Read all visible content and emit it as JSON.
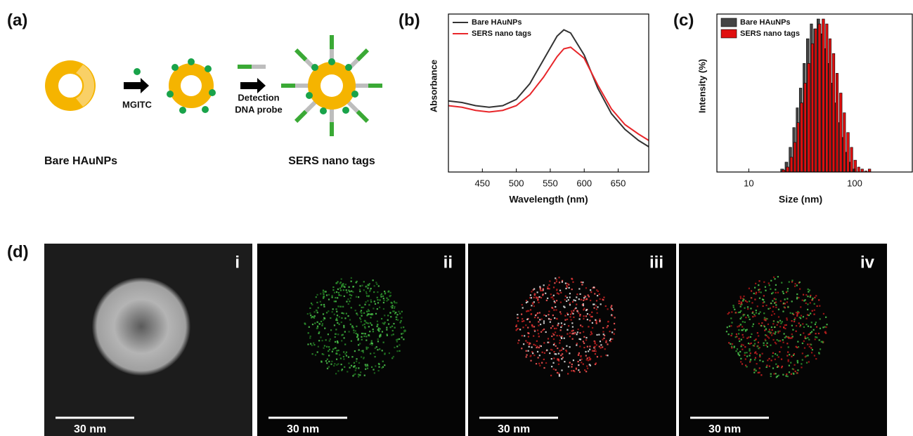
{
  "panel_labels": [
    "(a)",
    "(b)",
    "(c)",
    "(d)"
  ],
  "diagram": {
    "step1": "MGITC",
    "step2": [
      "Detection",
      "DNA probe"
    ],
    "start": "Bare HAuNPs",
    "end": "SERS nano tags"
  },
  "chart_data": [
    {
      "type": "line",
      "x_label": "Wavelength (nm)",
      "y_label": "Absorbance",
      "x": [
        400,
        420,
        440,
        460,
        480,
        500,
        520,
        540,
        560,
        570,
        580,
        600,
        620,
        640,
        660,
        680,
        695
      ],
      "series": [
        {
          "name": "Bare HAuNPs",
          "color": "#333333",
          "values": [
            0.45,
            0.44,
            0.42,
            0.41,
            0.42,
            0.46,
            0.56,
            0.71,
            0.86,
            0.9,
            0.88,
            0.74,
            0.53,
            0.37,
            0.27,
            0.2,
            0.16
          ]
        },
        {
          "name": "SERS nano tags",
          "color": "#e8262a",
          "values": [
            0.42,
            0.41,
            0.39,
            0.38,
            0.39,
            0.42,
            0.49,
            0.6,
            0.73,
            0.78,
            0.79,
            0.72,
            0.55,
            0.4,
            0.3,
            0.24,
            0.2
          ]
        }
      ],
      "xlim": [
        400,
        695
      ],
      "ylim": [
        0,
        1
      ],
      "xticks": [
        450,
        500,
        550,
        600,
        650
      ],
      "legend": "upper left"
    },
    {
      "type": "histogram",
      "x_label": "Size (nm)",
      "y_label": "Intensity (%)",
      "xscale": "log",
      "bins": [
        20,
        22,
        24,
        26,
        28,
        30,
        32.5,
        35,
        38,
        41,
        44,
        48,
        52,
        56,
        60,
        65,
        70,
        76,
        82,
        89,
        96,
        104,
        112,
        121,
        131,
        142
      ],
      "series": [
        {
          "name": "Bare HAuNPs",
          "color": "#444444",
          "values": [
            0.3,
            1.0,
            2.5,
            4.5,
            6.5,
            8.5,
            11,
            13.5,
            15,
            14.5,
            15.5,
            14,
            12.5,
            11,
            9,
            7,
            5,
            3.5,
            2,
            1,
            0.3,
            0,
            0,
            0,
            0
          ]
        },
        {
          "name": "SERS nano tags",
          "color": "#e01010",
          "values": [
            0.2,
            0.5,
            1.5,
            3,
            5,
            7,
            9,
            11,
            13,
            14.5,
            15,
            15.5,
            15,
            13.5,
            12,
            10,
            8,
            6,
            4,
            2.5,
            1.2,
            0.5,
            0.3,
            0.1,
            0.3
          ]
        }
      ],
      "xlim": [
        5,
        350
      ],
      "ylim": [
        0,
        16
      ],
      "xticks": [
        10,
        100
      ],
      "legend": "upper left"
    }
  ],
  "micrographs": {
    "panels": [
      "i",
      "ii",
      "iii",
      "iv"
    ],
    "scale_bar": "30 nm"
  }
}
